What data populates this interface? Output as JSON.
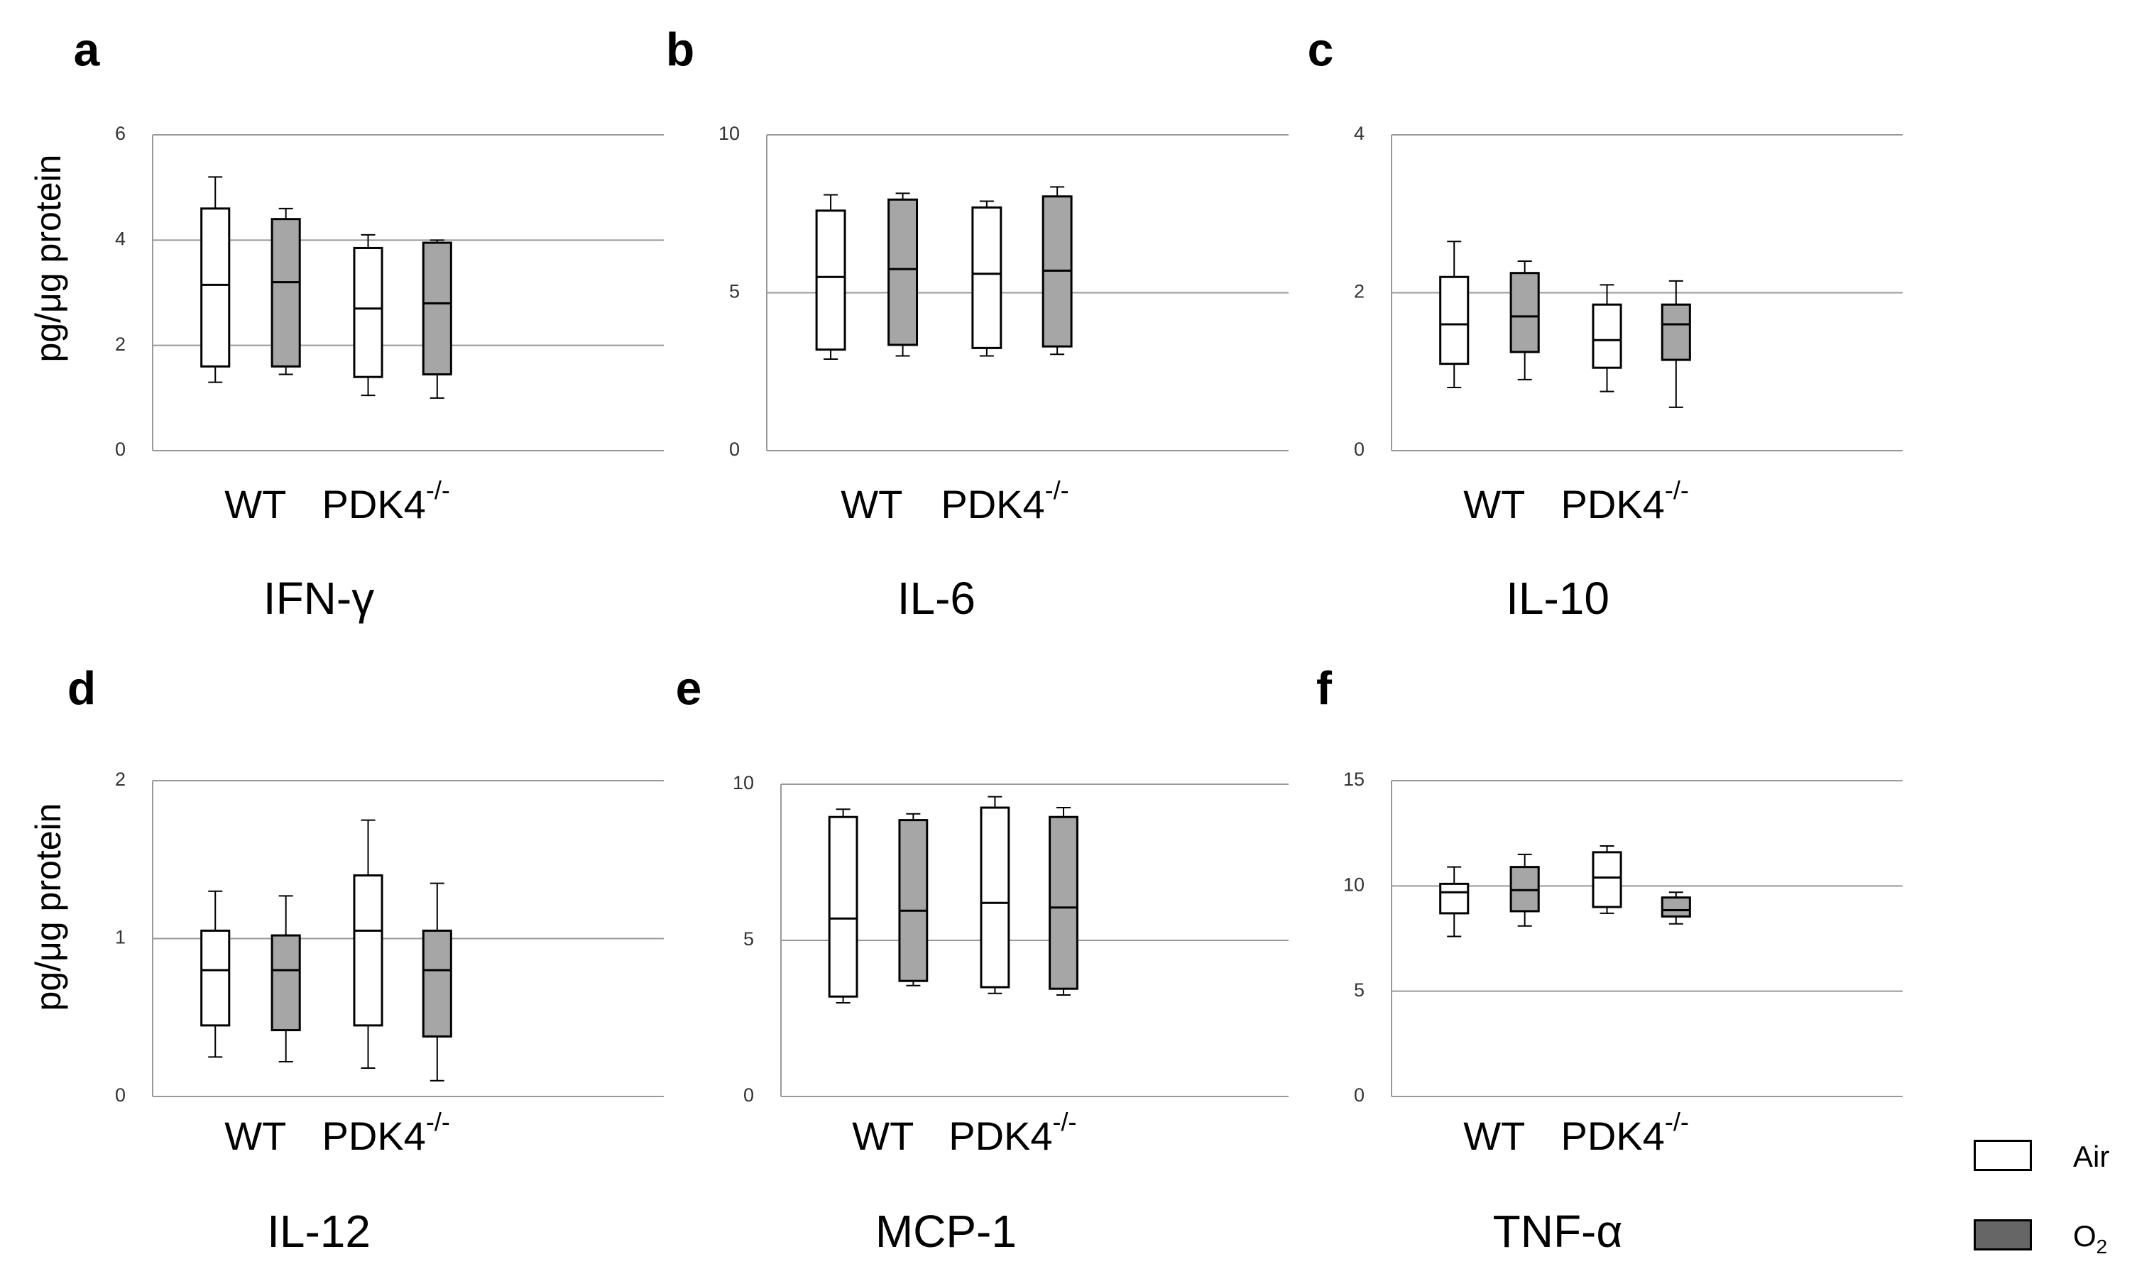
{
  "figure": {
    "y_axis_label": "pg/μg protein",
    "groups": [
      "WT",
      "PDK4",
      "PDK4"
    ],
    "group_superscript": "-/-",
    "legend": [
      {
        "label": "Air",
        "color": "#ffffff"
      },
      {
        "label": "O",
        "subscript": "2",
        "color": "#666666"
      }
    ],
    "colors": {
      "air_fill": "#ffffff",
      "o2_fill": "#a6a6a6",
      "grid": "#999999",
      "box_stroke": "#000000"
    }
  },
  "chart_data": [
    {
      "panel": "a",
      "title": "IFN-γ",
      "type": "box",
      "ylim": [
        0,
        6
      ],
      "yticks": [
        0,
        2,
        4,
        6
      ],
      "categories": [
        "WT",
        "PDK4-/-"
      ],
      "series": [
        {
          "name": "Air",
          "boxes": [
            {
              "category": "WT",
              "min": 1.3,
              "q1": 1.6,
              "median": 3.15,
              "q3": 4.6,
              "max": 5.2
            },
            {
              "category": "PDK4-/-",
              "min": 1.05,
              "q1": 1.4,
              "median": 2.7,
              "q3": 3.85,
              "max": 4.1
            }
          ]
        },
        {
          "name": "O2",
          "boxes": [
            {
              "category": "WT",
              "min": 1.45,
              "q1": 1.6,
              "median": 3.2,
              "q3": 4.4,
              "max": 4.6
            },
            {
              "category": "PDK4-/-",
              "min": 1.0,
              "q1": 1.45,
              "median": 2.8,
              "q3": 3.95,
              "max": 4.0
            }
          ]
        }
      ]
    },
    {
      "panel": "b",
      "title": "IL-6",
      "type": "box",
      "ylim": [
        0,
        10
      ],
      "yticks": [
        0,
        5,
        10
      ],
      "categories": [
        "WT",
        "PDK4-/-"
      ],
      "series": [
        {
          "name": "Air",
          "boxes": [
            {
              "category": "WT",
              "min": 2.9,
              "q1": 3.2,
              "median": 5.5,
              "q3": 7.6,
              "max": 8.1
            },
            {
              "category": "PDK4-/-",
              "min": 3.0,
              "q1": 3.25,
              "median": 5.6,
              "q3": 7.7,
              "max": 7.9
            }
          ]
        },
        {
          "name": "O2",
          "boxes": [
            {
              "category": "WT",
              "min": 3.0,
              "q1": 3.35,
              "median": 5.75,
              "q3": 7.95,
              "max": 8.15
            },
            {
              "category": "PDK4-/-",
              "min": 3.05,
              "q1": 3.3,
              "median": 5.7,
              "q3": 8.05,
              "max": 8.35
            }
          ]
        }
      ]
    },
    {
      "panel": "c",
      "title": "IL-10",
      "type": "box",
      "ylim": [
        0,
        4
      ],
      "yticks": [
        0,
        2,
        4
      ],
      "categories": [
        "WT",
        "PDK4-/-"
      ],
      "series": [
        {
          "name": "Air",
          "boxes": [
            {
              "category": "WT",
              "min": 0.8,
              "q1": 1.1,
              "median": 1.6,
              "q3": 2.2,
              "max": 2.65
            },
            {
              "category": "PDK4-/-",
              "min": 0.75,
              "q1": 1.05,
              "median": 1.4,
              "q3": 1.85,
              "max": 2.1
            }
          ]
        },
        {
          "name": "O2",
          "boxes": [
            {
              "category": "WT",
              "min": 0.9,
              "q1": 1.25,
              "median": 1.7,
              "q3": 2.25,
              "max": 2.4
            },
            {
              "category": "PDK4-/-",
              "min": 0.55,
              "q1": 1.15,
              "median": 1.6,
              "q3": 1.85,
              "max": 2.15
            }
          ]
        }
      ]
    },
    {
      "panel": "d",
      "title": "IL-12",
      "type": "box",
      "ylim": [
        0,
        2
      ],
      "yticks": [
        0,
        1,
        2
      ],
      "categories": [
        "WT",
        "PDK4-/-"
      ],
      "series": [
        {
          "name": "Air",
          "boxes": [
            {
              "category": "WT",
              "min": 0.25,
              "q1": 0.45,
              "median": 0.8,
              "q3": 1.05,
              "max": 1.3
            },
            {
              "category": "PDK4-/-",
              "min": 0.18,
              "q1": 0.45,
              "median": 1.05,
              "q3": 1.4,
              "max": 1.75
            }
          ]
        },
        {
          "name": "O2",
          "boxes": [
            {
              "category": "WT",
              "min": 0.22,
              "q1": 0.42,
              "median": 0.8,
              "q3": 1.02,
              "max": 1.27
            },
            {
              "category": "PDK4-/-",
              "min": 0.1,
              "q1": 0.38,
              "median": 0.8,
              "q3": 1.05,
              "max": 1.35
            }
          ]
        }
      ]
    },
    {
      "panel": "e",
      "title": "MCP-1",
      "type": "box",
      "ylim": [
        0,
        10
      ],
      "yticks": [
        0,
        5,
        10
      ],
      "categories": [
        "WT",
        "PDK4-/-"
      ],
      "series": [
        {
          "name": "Air",
          "boxes": [
            {
              "category": "WT",
              "min": 3.0,
              "q1": 3.2,
              "median": 5.7,
              "q3": 8.95,
              "max": 9.2
            },
            {
              "category": "PDK4-/-",
              "min": 3.3,
              "q1": 3.5,
              "median": 6.2,
              "q3": 9.25,
              "max": 9.6
            }
          ]
        },
        {
          "name": "O2",
          "boxes": [
            {
              "category": "WT",
              "min": 3.55,
              "q1": 3.7,
              "median": 5.95,
              "q3": 8.85,
              "max": 9.05
            },
            {
              "category": "PDK4-/-",
              "min": 3.25,
              "q1": 3.45,
              "median": 6.05,
              "q3": 8.95,
              "max": 9.25
            }
          ]
        }
      ]
    },
    {
      "panel": "f",
      "title": "TNF-α",
      "type": "box",
      "ylim": [
        0,
        15
      ],
      "yticks": [
        0,
        5,
        10,
        15
      ],
      "categories": [
        "WT",
        "PDK4-/-"
      ],
      "series": [
        {
          "name": "Air",
          "boxes": [
            {
              "category": "WT",
              "min": 7.6,
              "q1": 8.7,
              "median": 9.7,
              "q3": 10.1,
              "max": 10.9
            },
            {
              "category": "PDK4-/-",
              "min": 8.7,
              "q1": 9.0,
              "median": 10.4,
              "q3": 11.6,
              "max": 11.9
            }
          ]
        },
        {
          "name": "O2",
          "boxes": [
            {
              "category": "WT",
              "min": 8.1,
              "q1": 8.8,
              "median": 9.8,
              "q3": 10.9,
              "max": 11.5
            },
            {
              "category": "PDK4-/-",
              "min": 8.2,
              "q1": 8.55,
              "median": 8.85,
              "q3": 9.45,
              "max": 9.7
            }
          ]
        }
      ]
    }
  ]
}
